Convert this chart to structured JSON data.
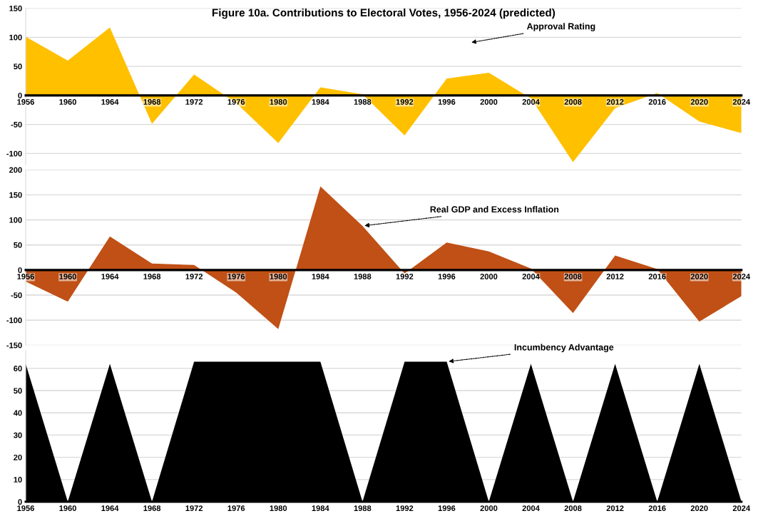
{
  "chart_data": [
    {
      "type": "area",
      "title": "Figure 10a. Contributions to Electoral Votes, 1956-2024 (predicted)",
      "categories": [
        "1956",
        "1960",
        "1964",
        "1968",
        "1972",
        "1976",
        "1980",
        "1984",
        "1988",
        "1992",
        "1996",
        "2000",
        "2004",
        "2008",
        "2012",
        "2016",
        "2020",
        "2024"
      ],
      "series": [
        {
          "color": "#ffc000",
          "values": [
            101,
            60,
            117,
            -49,
            36,
            -13,
            -82,
            14,
            2,
            -69,
            29,
            39,
            -5,
            -115,
            -22,
            4,
            -45,
            -65
          ]
        }
      ],
      "ylim": [
        -120,
        150
      ],
      "yticks": [
        -100,
        -50,
        0,
        50,
        100,
        150
      ],
      "grid": "y",
      "annotations": [
        "Approval Rating"
      ]
    },
    {
      "type": "area",
      "categories": [
        "1956",
        "1960",
        "1964",
        "1968",
        "1972",
        "1976",
        "1980",
        "1984",
        "1988",
        "1992",
        "1996",
        "2000",
        "2004",
        "2008",
        "2012",
        "2016",
        "2020",
        "2024"
      ],
      "series": [
        {
          "color": "#c05016",
          "values": [
            -23,
            -63,
            67,
            13,
            10,
            -45,
            -118,
            167,
            88,
            -7,
            55,
            37,
            3,
            -86,
            29,
            2,
            -103,
            -52
          ]
        }
      ],
      "ylim": [
        -150,
        200
      ],
      "yticks": [
        -150,
        -100,
        -50,
        0,
        50,
        100,
        150,
        200
      ],
      "grid": "y",
      "annotations": [
        {
          "text": "Real GDP and Excess Inflation",
          "x": "1988",
          "y": 88
        }
      ]
    },
    {
      "type": "area",
      "categories": [
        "1956",
        "1960",
        "1964",
        "1968",
        "1972",
        "1976",
        "1980",
        "1984",
        "1988",
        "1992",
        "1996",
        "2000",
        "2004",
        "2008",
        "2012",
        "2016",
        "2020",
        "2024"
      ],
      "series": [
        {
          "color": "#000000",
          "values": [
            62,
            0,
            62,
            0,
            63,
            63,
            63,
            63,
            0,
            63,
            63,
            0,
            62,
            0,
            62,
            0,
            62,
            0
          ]
        }
      ],
      "ylim": [
        0,
        68
      ],
      "yticks": [
        0,
        10,
        20,
        30,
        40,
        50,
        60
      ],
      "grid": "y",
      "annotations": [
        {
          "text": "Incumbency Advantage",
          "x": "1996",
          "y": 63
        }
      ]
    }
  ]
}
